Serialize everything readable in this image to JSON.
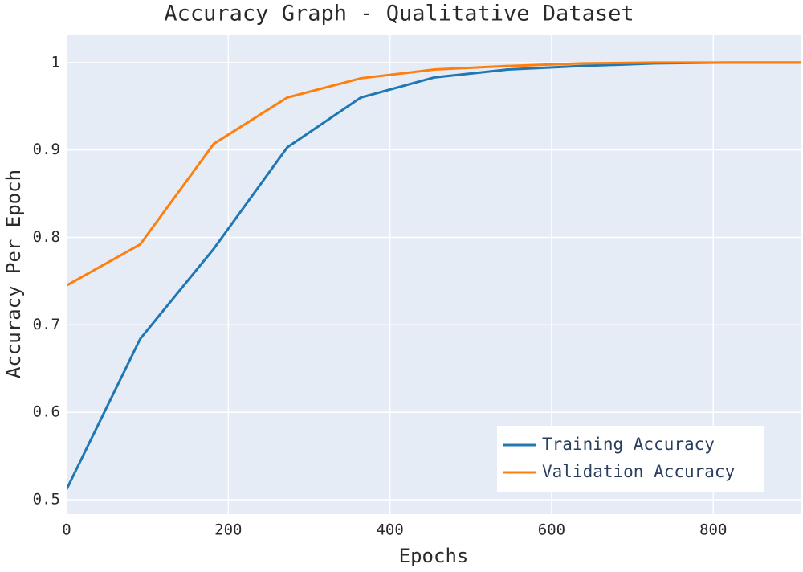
{
  "chart_data": {
    "type": "line",
    "title": "Accuracy Graph - Qualitative Dataset",
    "x_label": "Epochs",
    "y_label": "Accuracy Per Epoch",
    "x": [
      0,
      91,
      182,
      273,
      364,
      455,
      546,
      637,
      728,
      819,
      910
    ],
    "series": [
      {
        "name": "Training Accuracy",
        "color": "#1f77b4",
        "values": [
          0.512,
          0.684,
          0.787,
          0.903,
          0.96,
          0.983,
          0.992,
          0.996,
          0.999,
          1.0,
          1.0
        ]
      },
      {
        "name": "Validation Accuracy",
        "color": "#ff7f0e",
        "values": [
          0.745,
          0.792,
          0.907,
          0.96,
          0.982,
          0.992,
          0.996,
          0.999,
          1.0,
          1.0,
          1.0
        ]
      }
    ],
    "xlim": [
      0,
      908
    ],
    "xticks": [
      0,
      200,
      400,
      600,
      800
    ],
    "ylim": [
      0.4835,
      1.032
    ],
    "yticks": [
      0.5,
      0.6,
      0.7,
      0.8,
      0.9,
      1
    ],
    "grid": true,
    "legend_position": "lower right"
  }
}
